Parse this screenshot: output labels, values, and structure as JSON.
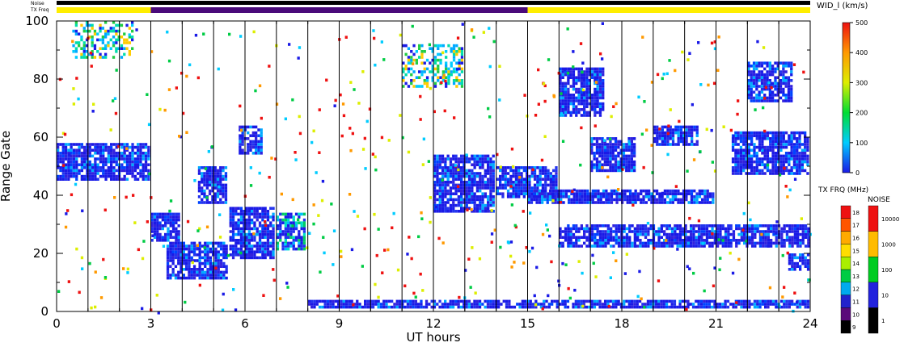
{
  "chart_data": {
    "type": "heatmap",
    "xlabel": "UT hours",
    "ylabel": "Range Gate",
    "xlim": [
      0,
      24
    ],
    "ylim": [
      0,
      100
    ],
    "x_ticks": [
      "0",
      "3",
      "6",
      "9",
      "12",
      "15",
      "18",
      "21",
      "24"
    ],
    "y_ticks": [
      "0",
      "20",
      "40",
      "60",
      "80",
      "100"
    ],
    "grid": "vertical lines every 1 hour",
    "top_strips": {
      "noise_label": "Noise",
      "txfreq_label": "TX Freq",
      "segments": [
        {
          "from": 0,
          "to": 3,
          "color": "#ffee00"
        },
        {
          "from": 3,
          "to": 15,
          "color": "#4a0a7a"
        },
        {
          "from": 15,
          "to": 24,
          "color": "#ffee00"
        }
      ]
    },
    "colorbar_width": {
      "title": "WID_l (km/s)",
      "ticks": [
        "0",
        "100",
        "200",
        "300",
        "400",
        "500"
      ],
      "min": 0,
      "max": 500
    },
    "colorbar_txfreq": {
      "title": "TX FRQ (MHz)",
      "ticks": [
        "9",
        "10",
        "11",
        "12",
        "13",
        "14",
        "15",
        "16",
        "17",
        "18"
      ],
      "colors": [
        "#000000",
        "#5a0a7a",
        "#2222cc",
        "#00aaee",
        "#00cc44",
        "#aaee00",
        "#ffdd00",
        "#ffaa00",
        "#ff5500",
        "#ee1111"
      ]
    },
    "colorbar_noise": {
      "title": "NOISE",
      "ticks": [
        "1",
        "10",
        "100",
        "1000",
        "10000"
      ],
      "colors": [
        "#000000",
        "#2222dd",
        "#00cc22",
        "#ffbb00",
        "#ee1111"
      ]
    },
    "regions": [
      {
        "t0": 0.0,
        "t1": 3.0,
        "g0": 44,
        "g1": 58,
        "level": "low"
      },
      {
        "t0": 3.0,
        "t1": 4.0,
        "g0": 24,
        "g1": 34,
        "level": "low"
      },
      {
        "t0": 3.5,
        "t1": 5.5,
        "g0": 10,
        "g1": 24,
        "level": "low"
      },
      {
        "t0": 4.5,
        "t1": 5.5,
        "g0": 36,
        "g1": 50,
        "level": "low"
      },
      {
        "t0": 5.5,
        "t1": 7.0,
        "g0": 18,
        "g1": 36,
        "level": "low"
      },
      {
        "t0": 7.0,
        "t1": 8.0,
        "g0": 20,
        "g1": 34,
        "level": "mid"
      },
      {
        "t0": 5.8,
        "t1": 6.6,
        "g0": 54,
        "g1": 64,
        "level": "low"
      },
      {
        "t0": 12.0,
        "t1": 14.0,
        "g0": 34,
        "g1": 54,
        "level": "low"
      },
      {
        "t0": 14.0,
        "t1": 16.0,
        "g0": 38,
        "g1": 50,
        "level": "low"
      },
      {
        "t0": 15.0,
        "t1": 21.0,
        "g0": 36,
        "g1": 42,
        "level": "low"
      },
      {
        "t0": 16.0,
        "t1": 24.0,
        "g0": 22,
        "g1": 30,
        "level": "low"
      },
      {
        "t0": 17.0,
        "t1": 18.5,
        "g0": 48,
        "g1": 60,
        "level": "low"
      },
      {
        "t0": 19.0,
        "t1": 20.5,
        "g0": 56,
        "g1": 64,
        "level": "low"
      },
      {
        "t0": 21.5,
        "t1": 24.0,
        "g0": 46,
        "g1": 62,
        "level": "low"
      },
      {
        "t0": 16.0,
        "t1": 17.5,
        "g0": 66,
        "g1": 84,
        "level": "low"
      },
      {
        "t0": 11.0,
        "t1": 13.0,
        "g0": 76,
        "g1": 92,
        "level": "high"
      },
      {
        "t0": 0.5,
        "t1": 2.5,
        "g0": 86,
        "g1": 100,
        "level": "high"
      },
      {
        "t0": 8.0,
        "t1": 24.0,
        "g0": 0,
        "g1": 4,
        "level": "low"
      },
      {
        "t0": 22.0,
        "t1": 23.5,
        "g0": 72,
        "g1": 86,
        "level": "low"
      },
      {
        "t0": 23.3,
        "t1": 24.0,
        "g0": 14,
        "g1": 20,
        "level": "low"
      }
    ]
  }
}
